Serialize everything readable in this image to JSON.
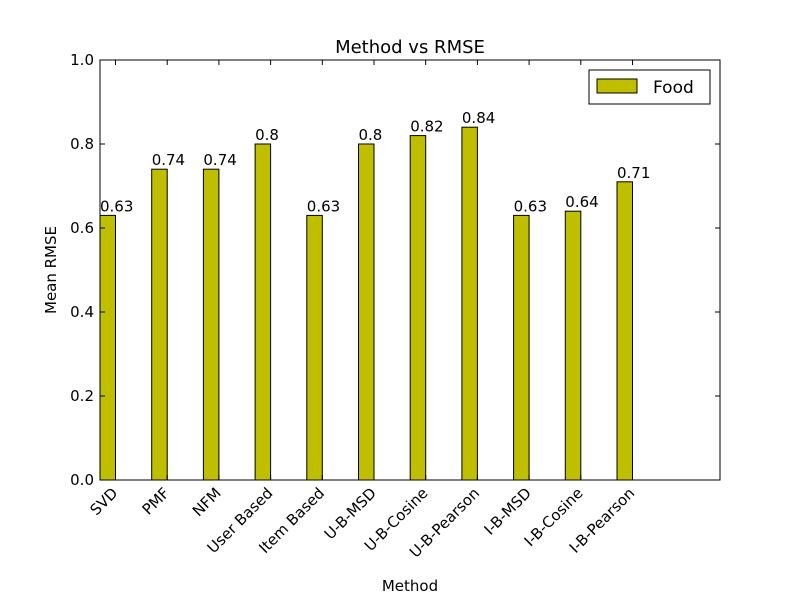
{
  "chart_data": {
    "type": "bar",
    "title": "Method vs RMSE",
    "xlabel": "Method",
    "ylabel": "Mean RMSE",
    "ylim": [
      0,
      1.0
    ],
    "yticks": [
      "0.0",
      "0.2",
      "0.4",
      "0.6",
      "0.8",
      "1.0"
    ],
    "ytick_values": [
      0,
      0.2,
      0.4,
      0.6,
      0.8,
      1.0
    ],
    "categories": [
      "SVD",
      "PMF",
      "NFM",
      "User Based",
      "Item Based",
      "U-B-MSD",
      "U-B-Cosine",
      "U-B-Pearson",
      "I-B-MSD",
      "I-B-Cosine",
      "I-B-Pearson"
    ],
    "series": [
      {
        "name": "Food",
        "color": "#bfbf00",
        "values": [
          0.63,
          0.74,
          0.74,
          0.8,
          0.63,
          0.8,
          0.82,
          0.84,
          0.63,
          0.64,
          0.71
        ],
        "value_labels": [
          "0.63",
          "0.74",
          "0.74",
          "0.8",
          "0.63",
          "0.8",
          "0.82",
          "0.84",
          "0.63",
          "0.64",
          "0.71"
        ]
      }
    ],
    "legend": {
      "position": "top-right",
      "entries": [
        "Food"
      ]
    },
    "grid": false
  }
}
